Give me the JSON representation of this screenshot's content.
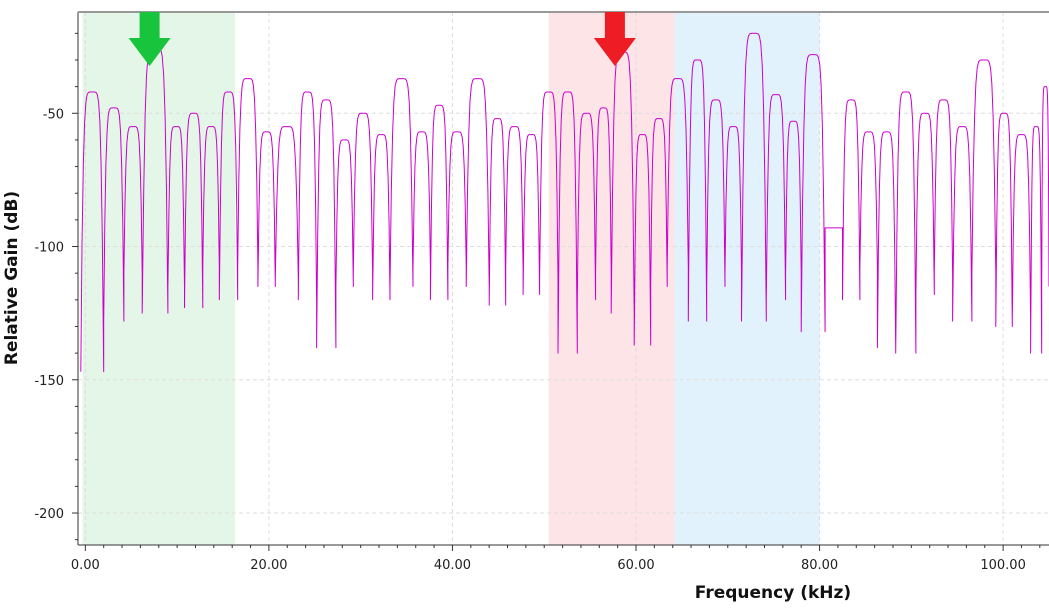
{
  "colors": {
    "background": "#ffffff",
    "trace": "#cc00cc",
    "grid": "#dddddd",
    "axis": "#333333",
    "passband_band": "#e3f6e7",
    "stopband_band": "#fde4e7",
    "transition_band": "#e1f2fc",
    "passband_marker": "#18c43c",
    "stopband_marker": "#ee1c24"
  },
  "chart_data": {
    "type": "line",
    "title": "",
    "xlabel": "Frequency (kHz)",
    "ylabel": "Relative Gain (dB)",
    "xlim": [
      -0.8,
      105
    ],
    "ylim": [
      -212,
      -12
    ],
    "grid": true,
    "x_ticks": [
      {
        "value": 0,
        "label": "0.00"
      },
      {
        "value": 20,
        "label": "20.00"
      },
      {
        "value": 40,
        "label": "40.00"
      },
      {
        "value": 60,
        "label": "60.00"
      },
      {
        "value": 80,
        "label": "80.00"
      },
      {
        "value": 100,
        "label": "100.00"
      }
    ],
    "y_ticks": [
      {
        "value": -50,
        "label": "-50"
      },
      {
        "value": -100,
        "label": "-100"
      },
      {
        "value": -150,
        "label": "-150"
      },
      {
        "value": -200,
        "label": "-200"
      }
    ],
    "shaded_regions": [
      {
        "name": "passband",
        "x_start": -0.3,
        "x_end": 16.3,
        "color_key": "passband_band"
      },
      {
        "name": "stopband",
        "x_start": 50.5,
        "x_end": 64.2,
        "color_key": "stopband_band"
      },
      {
        "name": "transition",
        "x_start": 64.2,
        "x_end": 80.0,
        "color_key": "transition_band"
      }
    ],
    "markers": [
      {
        "name": "passband-peak-marker",
        "x": 7.0,
        "color_key": "passband_marker"
      },
      {
        "name": "stopband-peak-marker",
        "x": 57.7,
        "color_key": "stopband_marker"
      }
    ],
    "series": [
      {
        "lobes": [
          [
            -0.5,
            2.0,
            -42,
            -147
          ],
          [
            2.0,
            4.2,
            -48,
            -128
          ],
          [
            4.2,
            6.2,
            -55,
            -110
          ],
          [
            6.2,
            9.0,
            -25,
            -125
          ],
          [
            9.0,
            10.8,
            -55,
            -115
          ],
          [
            10.8,
            12.8,
            -50,
            -123
          ],
          [
            12.8,
            14.6,
            -55,
            -108
          ],
          [
            14.6,
            16.6,
            -42,
            -120
          ],
          [
            16.6,
            18.8,
            -37,
            -108
          ],
          [
            18.8,
            20.7,
            -57,
            -115
          ],
          [
            20.7,
            23.2,
            -55,
            -112
          ],
          [
            23.2,
            25.2,
            -42,
            -120
          ],
          [
            25.2,
            27.3,
            -45,
            -138
          ],
          [
            27.3,
            29.2,
            -60,
            -115
          ],
          [
            29.2,
            31.3,
            -50,
            -110
          ],
          [
            31.3,
            33.2,
            -58,
            -120
          ],
          [
            33.2,
            35.7,
            -37,
            -115
          ],
          [
            35.7,
            37.6,
            -57,
            -108
          ],
          [
            37.6,
            39.5,
            -47,
            -120
          ],
          [
            39.5,
            41.5,
            -57,
            -107
          ],
          [
            41.5,
            44.0,
            -37,
            -115
          ],
          [
            44.0,
            45.8,
            -52,
            -122
          ],
          [
            45.8,
            47.7,
            -55,
            -108
          ],
          [
            47.7,
            49.5,
            -58,
            -118
          ],
          [
            49.5,
            51.5,
            -42,
            -112
          ],
          [
            51.5,
            53.6,
            -42,
            -140
          ],
          [
            53.6,
            55.6,
            -50,
            -120
          ],
          [
            55.6,
            57.3,
            -48,
            -110
          ],
          [
            57.3,
            59.8,
            -27,
            -125
          ],
          [
            59.8,
            61.6,
            -58,
            -137
          ],
          [
            61.6,
            63.4,
            -52,
            -115
          ],
          [
            63.4,
            65.7,
            -37,
            -108
          ],
          [
            65.7,
            67.7,
            -30,
            -128
          ],
          [
            67.7,
            69.7,
            -45,
            -115
          ],
          [
            69.7,
            71.5,
            -55,
            -110
          ],
          [
            71.5,
            74.2,
            -20,
            -128
          ],
          [
            74.2,
            76.3,
            -43,
            -120
          ],
          [
            76.3,
            78.0,
            -53,
            -110
          ],
          [
            78.0,
            80.6,
            -28,
            -132
          ],
          [
            80.6,
            82.5,
            -93,
            -93
          ],
          [
            82.5,
            84.4,
            -45,
            -120
          ],
          [
            84.4,
            86.3,
            -57,
            -108
          ],
          [
            86.3,
            88.3,
            -57,
            -138
          ],
          [
            88.3,
            90.5,
            -42,
            -140
          ],
          [
            90.5,
            92.5,
            -50,
            -118
          ],
          [
            92.5,
            94.5,
            -45,
            -110
          ],
          [
            94.5,
            96.6,
            -55,
            -128
          ],
          [
            96.6,
            99.2,
            -30,
            -110
          ],
          [
            99.2,
            101.0,
            -50,
            -130
          ],
          [
            101.0,
            103.0,
            -58,
            -127
          ],
          [
            103.0,
            104.2,
            -55,
            -140
          ],
          [
            104.2,
            105.0,
            -40,
            -115
          ]
        ]
      }
    ]
  }
}
